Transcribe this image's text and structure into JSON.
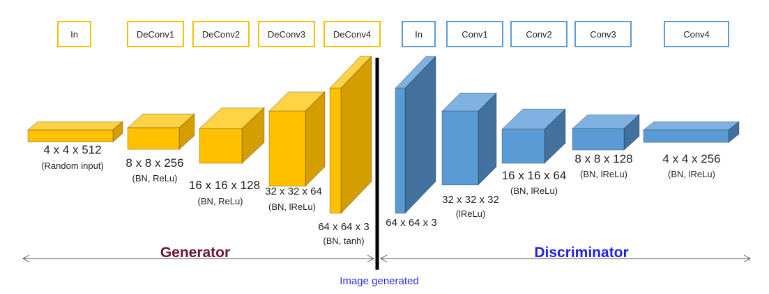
{
  "colors": {
    "gen_border": "#F2C200",
    "dis_border": "#5B9BD5",
    "gen_front": "#FFC000",
    "gen_top": "#FFD346",
    "gen_side": "#D59E00",
    "dis_front": "#5B9BD5",
    "dis_top": "#7FB2E2",
    "dis_side": "#41719C",
    "generator_text": "#6B1436",
    "discriminator_text": "#1F1FEA",
    "caption_text": "#2A2AE0",
    "divider": "#000000"
  },
  "generator": {
    "title": "Generator",
    "layers": [
      "In",
      "DeConv1",
      "DeConv2",
      "DeConv3",
      "DeConv4"
    ],
    "blocks": [
      {
        "dims": "4 x 4 x 512",
        "note": "(Random input)"
      },
      {
        "dims": "8 x 8 x 256",
        "note": "(BN, ReLu)"
      },
      {
        "dims": "16 x 16 x 128",
        "note": "(BN, ReLu)"
      },
      {
        "dims": "32 x 32 x 64",
        "note": "(BN, lReLu)"
      },
      {
        "dims": "64 x 64 x 3",
        "note": "(BN, tanh)"
      }
    ]
  },
  "discriminator": {
    "title": "Discriminator",
    "layers": [
      "In",
      "Conv1",
      "Conv2",
      "Conv3",
      "Conv4"
    ],
    "blocks": [
      {
        "dims": "64 x 64 x 3",
        "note": ""
      },
      {
        "dims": "32 x 32 x 32",
        "note": "(lReLu)"
      },
      {
        "dims": "16 x 16 x 64",
        "note": "(BN, lReLu)"
      },
      {
        "dims": "8 x 8 x 128",
        "note": "(BN, lReLu)"
      },
      {
        "dims": "4 x 4 x 256",
        "note": "(BN, lReLu)"
      }
    ]
  },
  "caption": "Image generated"
}
